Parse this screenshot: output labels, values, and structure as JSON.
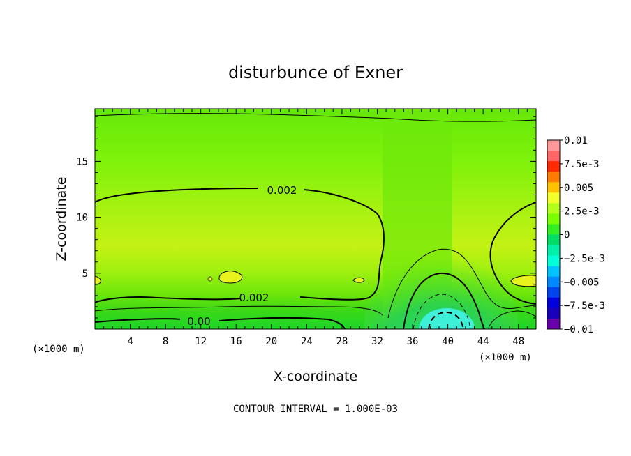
{
  "chart_data": {
    "type": "contour",
    "title": "disturbunce of Exner",
    "xlabel": "X-coordinate",
    "ylabel": "Z-coordinate",
    "x_unit_left": "(×1000 m)",
    "x_unit_right": "(×1000 m)",
    "xlim": [
      0,
      50
    ],
    "ylim": [
      0,
      19.7
    ],
    "x_ticks": [
      4,
      8,
      12,
      16,
      20,
      24,
      28,
      32,
      36,
      40,
      44,
      48
    ],
    "y_ticks": [
      5,
      10,
      15
    ],
    "colorbar": {
      "labels": [
        "0.01",
        "7.5e-3",
        "0.005",
        "2.5e-3",
        "0",
        "−2.5e-3",
        "−0.005",
        "−7.5e-3",
        "−0.01"
      ],
      "colors": [
        "#ff9999",
        "#ff6666",
        "#ff2a00",
        "#ff7a00",
        "#ffc000",
        "#f2ff2a",
        "#b4ff1a",
        "#7aff00",
        "#33ee22",
        "#00dd66",
        "#00f0aa",
        "#00ffd8",
        "#00c4ff",
        "#0088ff",
        "#0044ee",
        "#0000dd",
        "#1a00bb",
        "#6a00aa"
      ]
    },
    "contour_labels": [
      "0.002",
      "0.002",
      "0.00"
    ],
    "contour_interval": "CONTOUR INTERVAL = 1.000E-03"
  }
}
